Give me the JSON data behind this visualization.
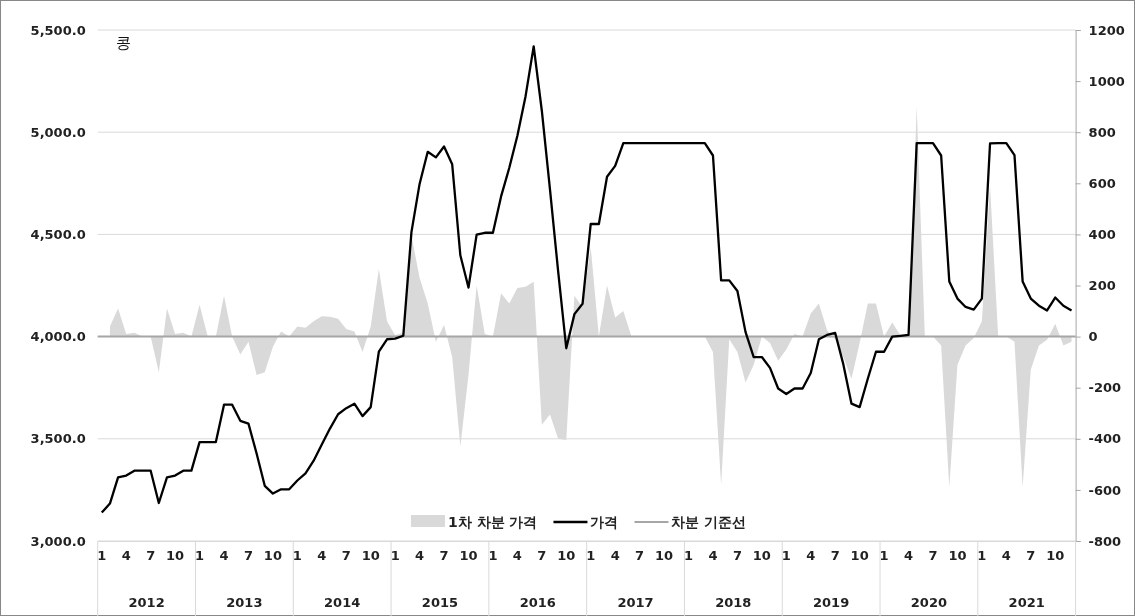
{
  "chart_data": {
    "type": "line",
    "title": "콩",
    "categories": [
      "1",
      null,
      null,
      "4",
      null,
      null,
      "7",
      null,
      null,
      "10",
      null,
      null,
      "1",
      null,
      null,
      "4",
      null,
      null,
      "7",
      null,
      null,
      "10",
      null,
      null,
      "1",
      null,
      null,
      "4",
      null,
      null,
      "7",
      null,
      null,
      "10",
      null,
      null,
      "1",
      null,
      null,
      "4",
      null,
      null,
      "7",
      null,
      null,
      "10",
      null,
      null,
      "1",
      null,
      null,
      "4",
      null,
      null,
      "7",
      null,
      null,
      "10",
      null,
      null,
      "1",
      null,
      null,
      "4",
      null,
      null,
      "7",
      null,
      null,
      "10",
      null,
      null,
      "1",
      null,
      null,
      "4",
      null,
      null,
      "7",
      null,
      null,
      "10",
      null,
      null,
      "1",
      null,
      null,
      "4",
      null,
      null,
      "7",
      null,
      null,
      "10",
      null,
      null,
      "1",
      null,
      null,
      "4",
      null,
      null,
      "7",
      null,
      null,
      "10",
      null,
      null,
      "1",
      null,
      null,
      "4",
      null,
      null,
      "7",
      null,
      null,
      "10",
      null,
      null
    ],
    "series": [
      {
        "name": "1차 차분 가격",
        "type": "area",
        "axis": "y2",
        "color": "#d9d9d9",
        "values": [
          null,
          40,
          110,
          10,
          15,
          0,
          0,
          -140,
          110,
          10,
          15,
          0,
          125,
          0,
          0,
          160,
          0,
          -70,
          -20,
          -150,
          -140,
          -40,
          20,
          0,
          40,
          35,
          60,
          80,
          78,
          70,
          30,
          20,
          -60,
          40,
          265,
          60,
          5,
          15,
          395,
          230,
          130,
          -20,
          45,
          -80,
          -430,
          -150,
          200,
          10,
          0,
          170,
          130,
          190,
          195,
          215,
          -345,
          -305,
          -400,
          -405,
          160,
          115,
          350,
          0,
          200,
          75,
          100,
          0,
          0,
          0,
          0,
          0,
          0,
          0,
          0,
          0,
          0,
          -60,
          -580,
          -10,
          -60,
          -180,
          -110,
          0,
          -25,
          -95,
          -50,
          10,
          0,
          90,
          130,
          25,
          -10,
          -80,
          -165,
          -25,
          130,
          130,
          0,
          55,
          5,
          5,
          900,
          0,
          0,
          -35,
          -590,
          -110,
          -35,
          -5,
          60,
          590,
          0,
          0,
          -20,
          -590,
          -130,
          -35,
          -12,
          50,
          -35,
          -20
        ]
      },
      {
        "name": "가격",
        "type": "line",
        "color": "#000000",
        "values": [
          3139,
          3183,
          3311,
          3320,
          3344,
          3344,
          3344,
          3186,
          3311,
          3320,
          3344,
          3344,
          3484,
          3484,
          3484,
          3667,
          3667,
          3588,
          3574,
          3428,
          3270,
          3232,
          3253,
          3253,
          3296,
          3331,
          3393,
          3472,
          3550,
          3620,
          3650,
          3672,
          3611,
          3655,
          3926,
          3987,
          3990,
          4004,
          4511,
          4747,
          4904,
          4877,
          4930,
          4843,
          4398,
          4240,
          4499,
          4508,
          4508,
          4686,
          4825,
          4983,
          5175,
          5420,
          5105,
          4720,
          4320,
          3943,
          4110,
          4161,
          4551,
          4551,
          4782,
          4835,
          4947,
          4947,
          4947,
          4947,
          4947,
          4947,
          4947,
          4947,
          4947,
          4947,
          4947,
          4886,
          4275,
          4275,
          4223,
          4022,
          3900,
          3900,
          3847,
          3746,
          3719,
          3746,
          3746,
          3822,
          3987,
          4008,
          4018,
          3864,
          3672,
          3655,
          3794,
          3926,
          3926,
          4000,
          4004,
          4008,
          4947,
          4947,
          4947,
          4886,
          4270,
          4186,
          4145,
          4132,
          4186,
          4945,
          4947,
          4947,
          4888,
          4270,
          4186,
          4151,
          4128,
          4191,
          4151,
          4128
        ]
      }
    ],
    "ref_lines": [
      {
        "axis": "y2",
        "value": 0,
        "label": "차분 기준선",
        "color": "#a6a6a6"
      }
    ],
    "annotations": [
      "2012",
      "2013",
      "2014",
      "2015",
      "2016",
      "2017",
      "2018",
      "2019",
      "2020",
      "2021"
    ],
    "ylim": [
      3000,
      5500
    ],
    "yticks": [
      {
        "value": 3000,
        "label": "3,000.0"
      },
      {
        "value": 3500,
        "label": "3,500.0"
      },
      {
        "value": 4000,
        "label": "4,000.0"
      },
      {
        "value": 4500,
        "label": "4,500.0"
      },
      {
        "value": 5000,
        "label": "5,000.0"
      },
      {
        "value": 5500,
        "label": "5,500.0"
      }
    ],
    "y2lim": [
      -800,
      1200
    ],
    "y2ticks": [
      -800,
      -600,
      -400,
      -200,
      0,
      200,
      400,
      600,
      800,
      1000,
      1200
    ],
    "grid": "y",
    "legend": "bottom",
    "marker": "none",
    "line_style": "solid"
  }
}
